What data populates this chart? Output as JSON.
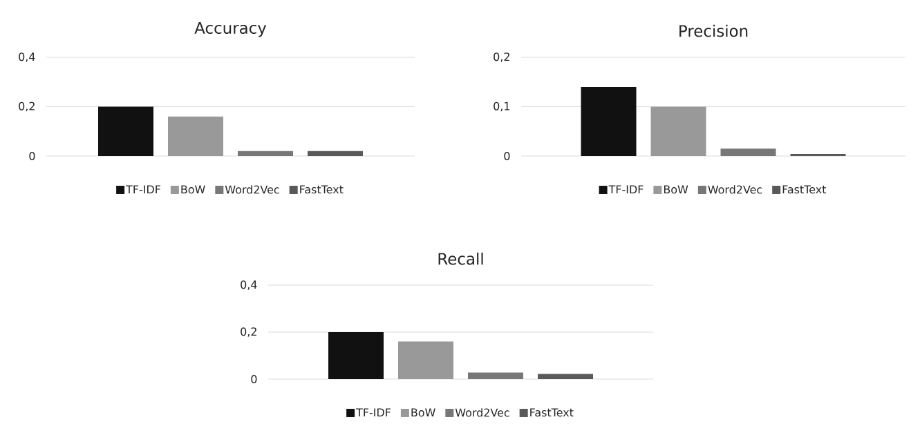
{
  "chart_data": [
    {
      "type": "bar",
      "title": "Accuracy",
      "categories": [
        null
      ],
      "series": [
        {
          "name": "TF-IDF",
          "color": "#111111",
          "values": [
            0.2
          ]
        },
        {
          "name": "BoW",
          "color": "#999999",
          "values": [
            0.16
          ]
        },
        {
          "name": "Word2Vec",
          "color": "#777777",
          "values": [
            0.02
          ]
        },
        {
          "name": "FastText",
          "color": "#595959",
          "values": [
            0.02
          ]
        }
      ],
      "ylim": [
        0,
        0.4
      ],
      "yticks": [
        0,
        {
          "value": 0.2,
          "label": "0,2"
        },
        {
          "value": 0.4,
          "label": "0,4"
        }
      ],
      "grid": "y",
      "legend": "bottom"
    },
    {
      "type": "bar",
      "title": "Precision",
      "categories": [
        null
      ],
      "series": [
        {
          "name": "TF-IDF",
          "color": "#111111",
          "values": [
            0.14
          ]
        },
        {
          "name": "BoW",
          "color": "#999999",
          "values": [
            0.1
          ]
        },
        {
          "name": "Word2Vec",
          "color": "#777777",
          "values": [
            0.015
          ]
        },
        {
          "name": "FastText",
          "color": "#595959",
          "values": [
            0.004
          ]
        }
      ],
      "ylim": [
        0,
        0.2
      ],
      "yticks": [
        0,
        {
          "value": 0.1,
          "label": "0,1"
        },
        {
          "value": 0.2,
          "label": "0,2"
        }
      ],
      "grid": "y",
      "legend": "bottom"
    },
    {
      "type": "bar",
      "title": "Recall",
      "categories": [
        null
      ],
      "series": [
        {
          "name": "TF-IDF",
          "color": "#111111",
          "values": [
            0.2
          ]
        },
        {
          "name": "BoW",
          "color": "#999999",
          "values": [
            0.16
          ]
        },
        {
          "name": "Word2Vec",
          "color": "#777777",
          "values": [
            0.028
          ]
        },
        {
          "name": "FastText",
          "color": "#595959",
          "values": [
            0.022
          ]
        }
      ],
      "ylim": [
        0,
        0.4
      ],
      "yticks": [
        0,
        {
          "value": 0.2,
          "label": "0,2"
        },
        {
          "value": 0.4,
          "label": "0,4"
        }
      ],
      "grid": "y",
      "legend": "bottom"
    }
  ]
}
